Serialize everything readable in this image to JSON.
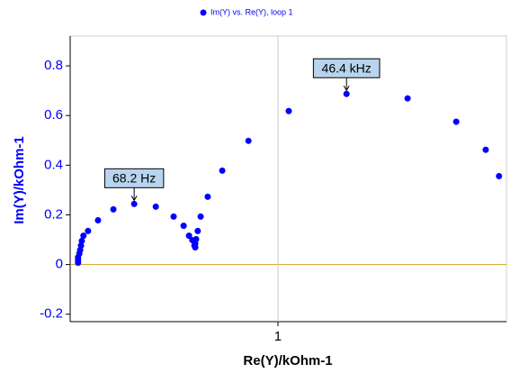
{
  "chart_data": {
    "type": "scatter",
    "legend": "Im(Y) vs. Re(Y), loop 1",
    "xlabel": "Re(Y)/kOhm-1",
    "ylabel": "Im(Y)/kOhm-1",
    "color": "#0000ff",
    "zero_line_color": "#d4a017",
    "xgrid": true,
    "xlim": [
      0.5,
      1.55
    ],
    "ylim": [
      -0.23,
      0.92
    ],
    "xticks": [
      1
    ],
    "yticks": [
      -0.2,
      0,
      0.2,
      0.4,
      0.6,
      0.8
    ],
    "x": [
      0.519,
      0.519,
      0.519,
      0.522,
      0.524,
      0.526,
      0.528,
      0.532,
      0.543,
      0.567,
      0.604,
      0.654,
      0.706,
      0.749,
      0.773,
      0.786,
      0.794,
      0.799,
      0.801,
      0.801,
      0.803,
      0.807,
      0.814,
      0.831,
      0.866,
      0.929,
      1.026,
      1.165,
      1.312,
      1.429,
      1.5,
      1.532
    ],
    "values": [
      0.007,
      0.018,
      0.029,
      0.044,
      0.058,
      0.076,
      0.095,
      0.116,
      0.135,
      0.178,
      0.222,
      0.244,
      0.233,
      0.193,
      0.156,
      0.116,
      0.098,
      0.076,
      0.069,
      0.084,
      0.102,
      0.135,
      0.193,
      0.273,
      0.378,
      0.498,
      0.618,
      0.687,
      0.669,
      0.575,
      0.462,
      0.356
    ],
    "annotations": [
      {
        "text": "68.2 Hz",
        "x": 0.654,
        "y": 0.244
      },
      {
        "text": "46.4 kHz",
        "x": 1.165,
        "y": 0.687
      }
    ]
  }
}
